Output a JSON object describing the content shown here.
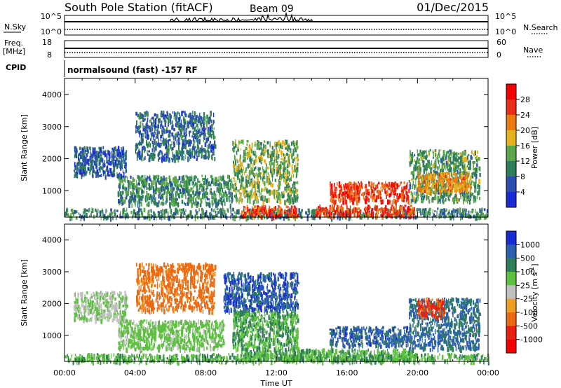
{
  "header": {
    "station": "South Pole Station (fitACF)",
    "beam": "Beam 09",
    "date": "01/Dec/2015"
  },
  "top_panels": {
    "nsky_label": "N.Sky",
    "nsearch_label": "N.Search",
    "nsky_ticks": [
      "10^5",
      "10^0"
    ],
    "nsearch_ticks": [
      "10^5",
      "10^0"
    ],
    "freq_label_top": "Freq.",
    "freq_label_bottom": "[MHz]",
    "freq_ticks": [
      "18",
      "8"
    ],
    "nave_label": "Nave",
    "nave_ticks": [
      "60",
      "0"
    ],
    "cpid_label": "CPID",
    "cpid_text": "normalsound (fast) -157 RF"
  },
  "chart_data": [
    {
      "type": "heatmap",
      "name": "power-panel",
      "ylabel": "Slant Range [km]",
      "xlabel": "Time UT",
      "x_ticks": [
        "00:00",
        "04:00",
        "08:00",
        "12:00",
        "16:00",
        "20:00",
        "00:00"
      ],
      "xlim_hours": [
        0,
        24
      ],
      "y_ticks": [
        1000,
        2000,
        3000,
        4000
      ],
      "ylim": [
        180,
        4500
      ],
      "colorbar_label": "Power [dB]",
      "colorbar_ticks": [
        "4",
        "8",
        "12",
        "16",
        "20",
        "24",
        "28"
      ],
      "colorbar_colors": [
        "#1a2bd6",
        "#2a4fb0",
        "#2f7e5a",
        "#5aa64a",
        "#e8b21e",
        "#ee7a14",
        "#e83018",
        "#f40000"
      ],
      "regions": [
        {
          "t0": 0.0,
          "t1": 24.0,
          "r0": 200,
          "r1": 480,
          "value": 10
        },
        {
          "t0": 10.0,
          "t1": 13.2,
          "r0": 240,
          "r1": 560,
          "value": 26
        },
        {
          "t0": 14.2,
          "t1": 19.8,
          "r0": 240,
          "r1": 580,
          "value": 26
        },
        {
          "t0": 15.0,
          "t1": 19.5,
          "r0": 700,
          "r1": 1300,
          "value": 26
        },
        {
          "t0": 3.0,
          "t1": 9.5,
          "r0": 600,
          "r1": 1500,
          "value": 11
        },
        {
          "t0": 9.5,
          "t1": 13.2,
          "r0": 700,
          "r1": 2600,
          "value": 14
        },
        {
          "t0": 19.5,
          "t1": 23.5,
          "r0": 700,
          "r1": 2300,
          "value": 12
        },
        {
          "t0": 0.5,
          "t1": 3.5,
          "r0": 1500,
          "r1": 2400,
          "value": 7
        },
        {
          "t0": 4.0,
          "t1": 8.5,
          "r0": 2000,
          "r1": 3500,
          "value": 8
        },
        {
          "t0": 20.0,
          "t1": 23.0,
          "r0": 1000,
          "r1": 1600,
          "value": 20
        }
      ]
    },
    {
      "type": "heatmap",
      "name": "velocity-panel",
      "ylabel": "Slant Range [km]",
      "xlabel": "Time UT",
      "x_ticks": [
        "00:00",
        "04:00",
        "08:00",
        "12:00",
        "16:00",
        "20:00",
        "00:00"
      ],
      "xlim_hours": [
        0,
        24
      ],
      "y_ticks": [
        1000,
        2000,
        3000,
        4000
      ],
      "ylim": [
        180,
        4500
      ],
      "colorbar_label": "Velocity [m s^-1]",
      "colorbar_ticks": [
        "1000",
        "500",
        "100",
        "25",
        "-25",
        "-100",
        "-500",
        "-1000"
      ],
      "colorbar_colors": [
        "#1a2bd6",
        "#2a5fb0",
        "#2f7e5a",
        "#5ec040",
        "#c0c0c0",
        "#f0a020",
        "#ee6a10",
        "#e82010",
        "#f40000"
      ],
      "regions": [
        {
          "t0": 0.0,
          "t1": 24.0,
          "r0": 200,
          "r1": 450,
          "value": 80
        },
        {
          "t0": 10.0,
          "t1": 19.8,
          "r0": 240,
          "r1": 600,
          "value": 90
        },
        {
          "t0": 15.0,
          "t1": 19.5,
          "r0": 700,
          "r1": 1300,
          "value": 700
        },
        {
          "t0": 9.0,
          "t1": 13.2,
          "r0": 1800,
          "r1": 3000,
          "value": 800
        },
        {
          "t0": 9.5,
          "t1": 13.2,
          "r0": 600,
          "r1": 1800,
          "value": 100
        },
        {
          "t0": 19.5,
          "t1": 23.5,
          "r0": 600,
          "r1": 2200,
          "value": 600
        },
        {
          "t0": 3.0,
          "t1": 9.0,
          "r0": 600,
          "r1": 1500,
          "value": 50
        },
        {
          "t0": 4.0,
          "t1": 8.5,
          "r0": 1800,
          "r1": 3300,
          "value": -200
        },
        {
          "t0": 20.0,
          "t1": 21.5,
          "r0": 1600,
          "r1": 2200,
          "value": -600
        },
        {
          "t0": 0.5,
          "t1": 3.5,
          "r0": 1500,
          "r1": 2400,
          "value": 20
        }
      ]
    }
  ]
}
